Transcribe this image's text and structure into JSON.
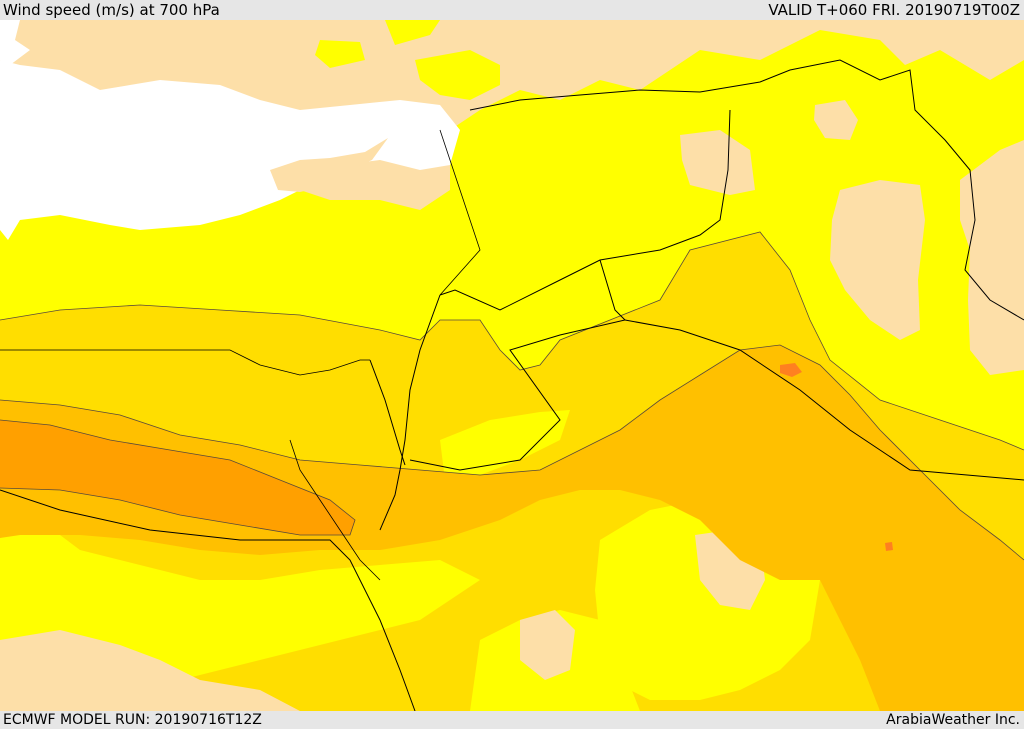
{
  "header": {
    "title": "Wind speed (m/s) at 700 hPa",
    "valid": "VALID T+060 FRI. 20190719T00Z"
  },
  "footer": {
    "model_run": "ECMWF MODEL RUN: 20190716T12Z",
    "credit": "ArabiaWeather Inc."
  },
  "colors": {
    "sea": "#ffffff",
    "band_low": "#fddfa8",
    "band_1": "#ffff00",
    "band_2": "#ffde00",
    "band_3": "#ffc000",
    "band_4": "#ffa000",
    "band_5": "#ff8020",
    "contour": "#5a4a3a",
    "border": "#000000"
  }
}
